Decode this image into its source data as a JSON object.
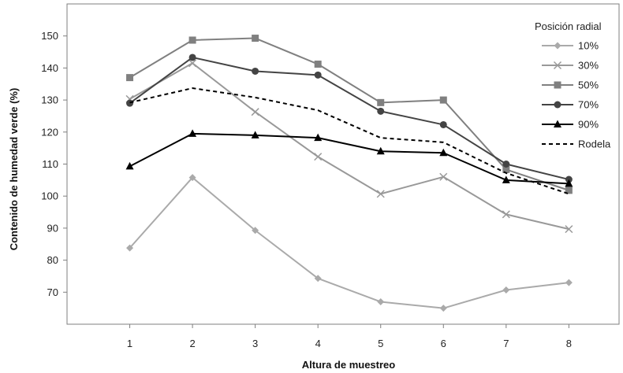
{
  "chart_data": {
    "type": "line",
    "title": "",
    "xlabel": "Altura de muestreo",
    "ylabel": "Contenido de humedad verde (%)",
    "x": [
      1,
      2,
      3,
      4,
      5,
      6,
      7,
      8
    ],
    "x_ticks": [
      "1",
      "2",
      "3",
      "4",
      "5",
      "6",
      "7",
      "8"
    ],
    "xlim": [
      0,
      8.8
    ],
    "ylim": [
      60,
      160
    ],
    "y_ticks": [
      70,
      80,
      90,
      100,
      110,
      120,
      130,
      140,
      150
    ],
    "grid": false,
    "legend": {
      "title": "Posición radial",
      "position": "top-right"
    },
    "series": [
      {
        "name": "10%",
        "color": "#aaaaaa",
        "marker": "diamond",
        "dashed": false,
        "values": [
          83.8,
          105.8,
          89.3,
          74.3,
          67.0,
          65.0,
          70.7,
          73.0
        ]
      },
      {
        "name": "30%",
        "color": "#999999",
        "marker": "x",
        "dashed": false,
        "values": [
          130.3,
          141.5,
          126.3,
          112.3,
          100.7,
          106.0,
          94.3,
          89.7
        ]
      },
      {
        "name": "50%",
        "color": "#808080",
        "marker": "square",
        "dashed": false,
        "values": [
          137.0,
          148.7,
          149.3,
          141.2,
          129.2,
          130.0,
          108.3,
          101.8
        ]
      },
      {
        "name": "70%",
        "color": "#444444",
        "marker": "circle",
        "dashed": false,
        "values": [
          129.0,
          143.3,
          139.0,
          137.8,
          126.5,
          122.3,
          110.0,
          105.2
        ]
      },
      {
        "name": "90%",
        "color": "#000000",
        "marker": "triangle",
        "dashed": false,
        "values": [
          109.3,
          119.5,
          119.0,
          118.2,
          114.0,
          113.5,
          105.0,
          103.9
        ]
      },
      {
        "name": "Rodela",
        "color": "#000000",
        "marker": "none",
        "dashed": true,
        "values": [
          129.2,
          133.7,
          130.8,
          126.8,
          118.2,
          116.8,
          107.2,
          100.7
        ]
      }
    ]
  }
}
